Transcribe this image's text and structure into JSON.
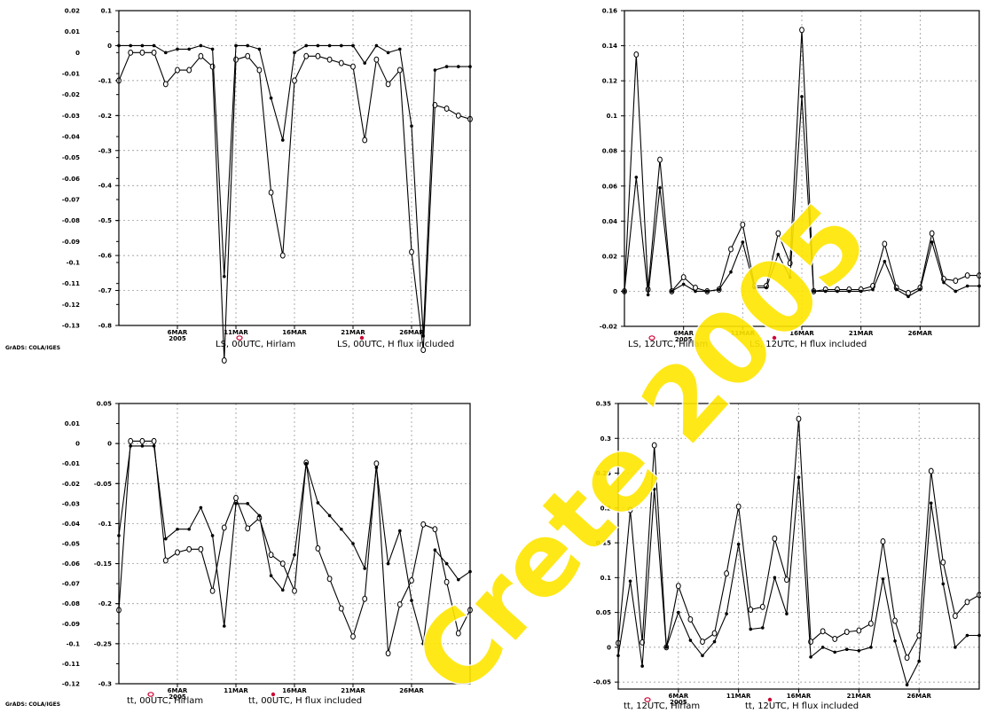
{
  "credit": "GrADS: COLA/IGES",
  "watermark": "Crete 2005",
  "colors": {
    "line": "#000000",
    "grid": "#888888",
    "legend_marker": "#cc0033",
    "watermark": "#ffe600"
  },
  "x_ticks": {
    "labels": [
      "6MAR",
      "11MAR",
      "16MAR",
      "21MAR",
      "26MAR"
    ],
    "year": "2005",
    "days": [
      6,
      11,
      16,
      21,
      26
    ]
  },
  "chart_data": [
    {
      "type": "line",
      "xlim": [
        1,
        31
      ],
      "yleft": {
        "lim": [
          -0.8,
          0.1
        ],
        "ticks": [
          "0.1",
          "0",
          "-0.1",
          "-0.2",
          "-0.3",
          "-0.4",
          "-0.5",
          "-0.6",
          "-0.7",
          "-0.8"
        ]
      },
      "yright": {
        "lim": [
          -0.13,
          0.02
        ],
        "ticks": [
          "0.02",
          "0.01",
          "0",
          "-0.01",
          "-0.02",
          "-0.03",
          "-0.04",
          "-0.05",
          "-0.06",
          "-0.07",
          "-0.08",
          "-0.09",
          "-0.1",
          "-0.11",
          "-0.12",
          "-0.13"
        ]
      },
      "legend": [
        "LS, 00UTC, Hirlam",
        "LS, 00UTC, H flux included"
      ],
      "series": [
        {
          "name": "LS, 00UTC, Hirlam",
          "marker": "open",
          "x": [
            1,
            2,
            3,
            4,
            5,
            6,
            7,
            8,
            9,
            10,
            11,
            12,
            13,
            14,
            15,
            16,
            17,
            18,
            19,
            20,
            21,
            22,
            23,
            24,
            25,
            26,
            27,
            28,
            29,
            30,
            31
          ],
          "y": [
            -0.1,
            -0.02,
            -0.02,
            -0.02,
            -0.11,
            -0.07,
            -0.07,
            -0.03,
            -0.06,
            -0.9,
            -0.04,
            -0.03,
            -0.07,
            -0.42,
            -0.6,
            -0.1,
            -0.03,
            -0.03,
            -0.04,
            -0.05,
            -0.06,
            -0.27,
            -0.04,
            -0.11,
            -0.07,
            -0.59,
            -0.87,
            -0.17,
            -0.18,
            -0.2,
            -0.21
          ]
        },
        {
          "name": "LS, 00UTC, H flux included",
          "marker": "filled",
          "x": [
            1,
            2,
            3,
            4,
            5,
            6,
            7,
            8,
            9,
            10,
            11,
            12,
            13,
            14,
            15,
            16,
            17,
            18,
            19,
            20,
            21,
            22,
            23,
            24,
            25,
            26,
            27,
            28,
            29,
            30,
            31
          ],
          "y": [
            0.0,
            0.0,
            0.0,
            0.0,
            -0.02,
            -0.01,
            -0.01,
            0.0,
            -0.01,
            -0.66,
            0.0,
            0.0,
            -0.01,
            -0.15,
            -0.27,
            -0.02,
            0.0,
            0.0,
            0.0,
            0.0,
            0.0,
            -0.05,
            0.0,
            -0.02,
            -0.01,
            -0.23,
            -0.83,
            -0.07,
            -0.06,
            -0.06,
            -0.06
          ]
        }
      ]
    },
    {
      "type": "line",
      "xlim": [
        1,
        31
      ],
      "yleft": {
        "lim": [
          -0.02,
          0.16
        ],
        "ticks": [
          "0.16",
          "0.14",
          "0.12",
          "0.1",
          "0.08",
          "0.06",
          "0.04",
          "0.02",
          "0",
          "-0.02"
        ]
      },
      "yright": null,
      "legend": [
        "LS, 12UTC, Hirlam",
        "LS, 12UTC, H flux included"
      ],
      "series": [
        {
          "name": "LS, 12UTC, Hirlam",
          "marker": "open",
          "x": [
            1,
            2,
            3,
            4,
            5,
            6,
            7,
            8,
            9,
            10,
            11,
            12,
            13,
            14,
            15,
            16,
            17,
            18,
            19,
            20,
            21,
            22,
            23,
            24,
            25,
            26,
            27,
            28,
            29,
            30,
            31
          ],
          "y": [
            0.0,
            0.135,
            0.001,
            0.075,
            0.0,
            0.008,
            0.002,
            0.0,
            0.001,
            0.024,
            0.038,
            0.003,
            0.003,
            0.033,
            0.016,
            0.149,
            0.0,
            0.001,
            0.001,
            0.001,
            0.001,
            0.003,
            0.027,
            0.002,
            -0.001,
            0.002,
            0.033,
            0.007,
            0.006,
            0.009,
            0.009
          ]
        },
        {
          "name": "LS, 12UTC, H flux included",
          "marker": "filled",
          "x": [
            1,
            2,
            3,
            4,
            5,
            6,
            7,
            8,
            9,
            10,
            11,
            12,
            13,
            14,
            15,
            16,
            17,
            18,
            19,
            20,
            21,
            22,
            23,
            24,
            25,
            26,
            27,
            28,
            29,
            30,
            31
          ],
          "y": [
            0.0,
            0.065,
            -0.002,
            0.059,
            0.0,
            0.004,
            0.0,
            0.0,
            0.001,
            0.011,
            0.028,
            0.002,
            0.002,
            0.021,
            0.008,
            0.111,
            0.0,
            0.0,
            0.0,
            0.0,
            0.0,
            0.001,
            0.017,
            0.001,
            -0.003,
            0.001,
            0.028,
            0.005,
            0.0,
            0.003,
            0.003
          ]
        }
      ]
    },
    {
      "type": "line",
      "xlim": [
        1,
        31
      ],
      "yleft": {
        "lim": [
          -0.3,
          0.05
        ],
        "ticks": [
          "0.05",
          "0",
          "-0.05",
          "-0.1",
          "-0.15",
          "-0.2",
          "-0.25",
          "-0.3"
        ]
      },
      "yright": {
        "lim": [
          -0.12,
          0.02
        ],
        "ticks": [
          "0.01",
          "0",
          "-0.01",
          "-0.02",
          "-0.03",
          "-0.04",
          "-0.05",
          "-0.06",
          "-0.07",
          "-0.08",
          "-0.09",
          "-0.1",
          "-0.11",
          "-0.12"
        ]
      },
      "legend": [
        "tt, 00UTC, Hirlam",
        "tt, 00UTC, H flux included"
      ],
      "series": [
        {
          "name": "tt, 00UTC, Hirlam",
          "marker": "open",
          "x": [
            1,
            2,
            3,
            4,
            5,
            6,
            7,
            8,
            9,
            10,
            11,
            12,
            13,
            14,
            15,
            16,
            17,
            18,
            19,
            20,
            21,
            22,
            23,
            24,
            25,
            26,
            27,
            28,
            29,
            30,
            31
          ],
          "y": [
            -0.208,
            0.003,
            0.003,
            0.003,
            -0.146,
            -0.136,
            -0.132,
            -0.132,
            -0.184,
            -0.105,
            -0.068,
            -0.106,
            -0.093,
            -0.139,
            -0.15,
            -0.184,
            -0.024,
            -0.131,
            -0.169,
            -0.206,
            -0.241,
            -0.194,
            -0.025,
            -0.262,
            -0.201,
            -0.171,
            -0.101,
            -0.107,
            -0.173,
            -0.237,
            -0.208
          ]
        },
        {
          "name": "tt, 00UTC, H flux included",
          "marker": "filled",
          "x": [
            1,
            2,
            3,
            4,
            5,
            6,
            7,
            8,
            9,
            10,
            11,
            12,
            13,
            14,
            15,
            16,
            17,
            18,
            19,
            20,
            21,
            22,
            23,
            24,
            25,
            26,
            27,
            28,
            29,
            30,
            31
          ],
          "y": [
            -0.115,
            -0.003,
            -0.003,
            -0.003,
            -0.119,
            -0.107,
            -0.107,
            -0.08,
            -0.115,
            -0.228,
            -0.075,
            -0.075,
            -0.09,
            -0.165,
            -0.183,
            -0.139,
            -0.025,
            -0.074,
            -0.09,
            -0.107,
            -0.125,
            -0.156,
            -0.03,
            -0.15,
            -0.109,
            -0.196,
            -0.25,
            -0.133,
            -0.15,
            -0.17,
            -0.16
          ]
        }
      ]
    },
    {
      "type": "line",
      "xlim": [
        1,
        31
      ],
      "yleft": {
        "lim": [
          -0.06,
          0.35
        ],
        "ticks": [
          "0.35",
          "0.3",
          "0.25",
          "0.2",
          "0.15",
          "0.1",
          "0.05",
          "0",
          "-0.05"
        ]
      },
      "yright": null,
      "legend": [
        "tt, 12UTC, Hirlam",
        "tt, 12UTC, H flux included"
      ],
      "series": [
        {
          "name": "tt, 12UTC, Hirlam",
          "marker": "open",
          "x": [
            1,
            2,
            3,
            4,
            5,
            6,
            7,
            8,
            9,
            10,
            11,
            12,
            13,
            14,
            15,
            16,
            17,
            18,
            19,
            20,
            21,
            22,
            23,
            24,
            25,
            26,
            27,
            28,
            29,
            30,
            31
          ],
          "y": [
            0.006,
            0.197,
            0.007,
            0.29,
            0.0,
            0.088,
            0.04,
            0.008,
            0.02,
            0.106,
            0.202,
            0.054,
            0.058,
            0.156,
            0.097,
            0.328,
            0.008,
            0.023,
            0.012,
            0.022,
            0.024,
            0.034,
            0.152,
            0.038,
            -0.015,
            0.017,
            0.253,
            0.122,
            0.045,
            0.065,
            0.075
          ]
        },
        {
          "name": "tt, 12UTC, H flux included",
          "marker": "filled",
          "x": [
            1,
            2,
            3,
            4,
            5,
            6,
            7,
            8,
            9,
            10,
            11,
            12,
            13,
            14,
            15,
            16,
            17,
            18,
            19,
            20,
            21,
            22,
            23,
            24,
            25,
            26,
            27,
            28,
            29,
            30,
            31
          ],
          "y": [
            -0.012,
            0.095,
            -0.027,
            0.227,
            0.0,
            0.05,
            0.01,
            -0.012,
            0.008,
            0.048,
            0.148,
            0.026,
            0.028,
            0.1,
            0.048,
            0.244,
            -0.014,
            0.0,
            -0.007,
            -0.003,
            -0.005,
            0.0,
            0.098,
            0.009,
            -0.054,
            -0.02,
            0.207,
            0.091,
            0.0,
            0.017,
            0.017
          ]
        }
      ]
    }
  ]
}
